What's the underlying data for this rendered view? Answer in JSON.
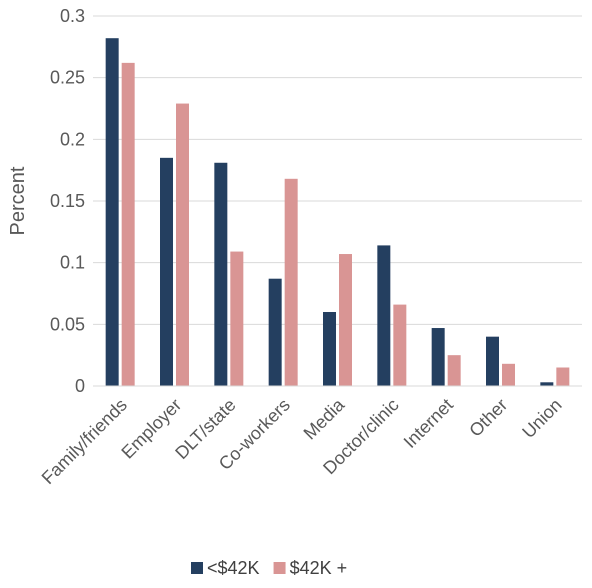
{
  "chart_data": {
    "type": "bar",
    "title": "",
    "xlabel": "",
    "ylabel": "Percent",
    "ylim": [
      0,
      0.3
    ],
    "yticks": [
      0,
      0.05,
      0.1,
      0.15,
      0.2,
      0.25,
      0.3
    ],
    "ytick_labels": [
      "0",
      "0.05",
      "0.1",
      "0.15",
      "0.2",
      "0.25",
      "0.3"
    ],
    "grid": true,
    "legend_position": "bottom",
    "categories": [
      "Family/friends",
      "Employer",
      "DLT/state",
      "Co-workers",
      "Media",
      "Doctor/clinic",
      "Internet",
      "Other",
      "Union"
    ],
    "series": [
      {
        "name": "<$42K",
        "color": "#243F60",
        "values": [
          0.282,
          0.185,
          0.181,
          0.087,
          0.06,
          0.114,
          0.047,
          0.04,
          0.003
        ]
      },
      {
        "name": "$42K +",
        "color": "#D99594",
        "values": [
          0.262,
          0.229,
          0.109,
          0.168,
          0.107,
          0.066,
          0.025,
          0.018,
          0.015
        ]
      }
    ]
  }
}
